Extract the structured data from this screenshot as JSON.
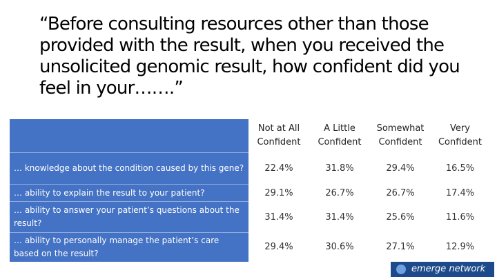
{
  "title": "“Before consulting resources other than those provided with the result, when you received the unsolicited genomic result, how confident did you feel in your…….”",
  "columns": [
    "Not at All Confident",
    "A Little Confident",
    "Somewhat Confident",
    "Very Confident"
  ],
  "rows": [
    {
      "label": "… knowledge about the condition caused by this gene?",
      "values": [
        "22.4%",
        "31.8%",
        "29.4%",
        "16.5%"
      ]
    },
    {
      "label": "… ability to explain the result to your patient?",
      "values": [
        "29.1%",
        "26.7%",
        "26.7%",
        "17.4%"
      ]
    },
    {
      "label": "… ability to answer your patient’s questions about the result?",
      "values": [
        "31.4%",
        "31.4%",
        "25.6%",
        "11.6%"
      ]
    },
    {
      "label": "… ability to personally manage the patient’s care based on the result?",
      "values": [
        "29.4%",
        "30.6%",
        "27.1%",
        "12.9%"
      ]
    }
  ],
  "logo": "emerge network",
  "colors": {
    "label_bg": "#4472c4",
    "logo_bg": "#1d4a8a"
  }
}
